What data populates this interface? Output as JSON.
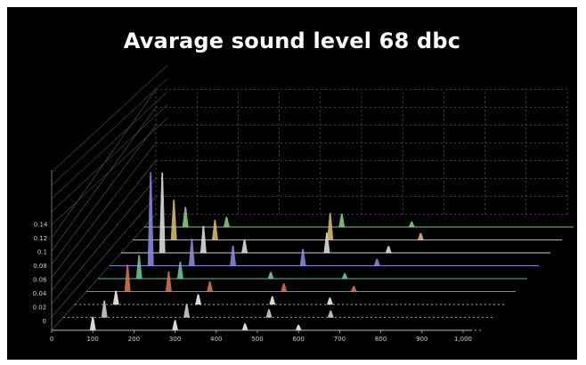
{
  "chart_data": {
    "type": "line",
    "title": "Avarage sound level 68 dbc",
    "xlabel": "",
    "ylabel": "",
    "x_ticks": [
      "0",
      "100",
      "200",
      "300",
      "400",
      "500",
      "600",
      "700",
      "800",
      "900",
      "1,000"
    ],
    "y_ticks": [
      "0",
      "0.02",
      "0.04",
      "0.06",
      "0.08",
      "0.1",
      "0.12",
      "0.14"
    ],
    "xlim": [
      0,
      1000
    ],
    "ylim": [
      0,
      0.14
    ],
    "grid": true,
    "series": [
      {
        "color": "#ffffff",
        "peaks": [
          [
            100,
            0.02
          ],
          [
            300,
            0.015
          ],
          [
            470,
            0.01
          ],
          [
            600,
            0.008
          ]
        ]
      },
      {
        "color": "#d8d8d8",
        "peaks": [
          [
            100,
            0.025
          ],
          [
            300,
            0.02
          ],
          [
            500,
            0.012
          ],
          [
            650,
            0.01
          ]
        ]
      },
      {
        "color": "#ffffff",
        "peaks": [
          [
            100,
            0.02
          ],
          [
            300,
            0.015
          ],
          [
            480,
            0.012
          ],
          [
            620,
            0.01
          ]
        ]
      },
      {
        "color": "#e07a55",
        "peaks": [
          [
            100,
            0.04
          ],
          [
            200,
            0.03
          ],
          [
            300,
            0.015
          ],
          [
            480,
            0.012
          ],
          [
            650,
            0.008
          ]
        ]
      },
      {
        "color": "#6fd29b",
        "peaks": [
          [
            100,
            0.035
          ],
          [
            200,
            0.025
          ],
          [
            420,
            0.01
          ],
          [
            600,
            0.008
          ]
        ]
      },
      {
        "color": "#8f8fe8",
        "peaks": [
          [
            100,
            0.14
          ],
          [
            200,
            0.04
          ],
          [
            300,
            0.03
          ],
          [
            470,
            0.025
          ],
          [
            650,
            0.01
          ]
        ]
      },
      {
        "color": "#e8e8e8",
        "peaks": [
          [
            100,
            0.12
          ],
          [
            200,
            0.04
          ],
          [
            300,
            0.02
          ],
          [
            500,
            0.03
          ],
          [
            650,
            0.01
          ]
        ]
      },
      {
        "color": "#e6c36a",
        "peaks": [
          [
            100,
            0.06
          ],
          [
            200,
            0.03
          ],
          [
            480,
            0.04
          ],
          [
            700,
            0.01
          ]
        ]
      },
      {
        "color": "#8fd48a",
        "peaks": [
          [
            100,
            0.03
          ],
          [
            200,
            0.015
          ],
          [
            480,
            0.02
          ],
          [
            650,
            0.008
          ]
        ]
      }
    ]
  }
}
